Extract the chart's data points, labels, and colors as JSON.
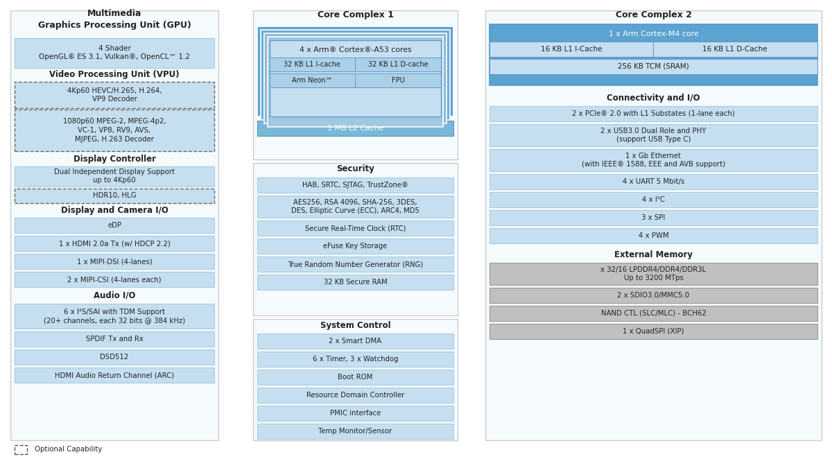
{
  "bg": "#ffffff",
  "lb": "#c5dff0",
  "mb": "#7ab8d8",
  "db": "#5ba3d0",
  "gray1": "#c0c0c0",
  "gray2": "#a8a8a8",
  "panel_bg": "#f5fafd",
  "col1_title": "Multimedia\nGraphics Processing Unit (GPU)",
  "col2_title": "Core Complex 1",
  "col3_title": "Core Complex 2",
  "gpu_text": "4 Shader\nOpenGL® ES 3.1, Vulkan®, OpenCL™ 1.2",
  "vpu_title": "Video Processing Unit (VPU)",
  "vpu1": "4Kp60 HEVC/H.265, H.264,\nVP9 Decoder",
  "vpu2": "1080p60 MPEG-2, MPEG-4p2,\nVC-1, VP8, RV9, AVS,\nMJPEG, H.263 Decoder",
  "dc_title": "Display Controller",
  "dc1": "Dual Independent Display Support\nup to 4Kp60",
  "dc2": "HDR10, HLG",
  "dcio_title": "Display and Camera I/O",
  "dcio": [
    "eDP",
    "1 x HDMI 2.0a Tx (w/ HDCP 2.2)",
    "1 x MIPI-DSI (4-lanes)",
    "2 x MIPI-CSI (4-lanes each)"
  ],
  "audio_title": "Audio I/O",
  "audio1": "6 x I²S/SAI with TDM Support\n(20+ channels, each 32 bits @ 384 kHz)",
  "audio_rest": [
    "SPDIF Tx and Rx",
    "DSD512",
    "HDMI Audio Return Channel (ARC)"
  ],
  "cc1_cores": "4 x Arm® Cortex®-A53 cores",
  "cc1_icache": "32 KB L1 I-cache",
  "cc1_dcache": "32 KB L1 D-cache",
  "cc1_neon": "Arm Neon™",
  "cc1_fpu": "FPU",
  "cc1_l2": "1 MB L2 Cache",
  "sec_title": "Security",
  "sec": [
    "HAB, SRTC, SJTAG, TrustZone®",
    "AES256, RSA 4096, SHA-256, 3DES,\nDES, Elliptic Curve (ECC), ARC4, MD5",
    "Secure Real-Time Clock (RTC)",
    "eFuse Key Storage",
    "True Random Number Generator (RNG)",
    "32 KB Secure RAM"
  ],
  "sc_title": "System Control",
  "sc": [
    "2 x Smart DMA",
    "6 x Timer, 3 x Watchdog",
    "Boot ROM",
    "Resource Domain Controller",
    "PMIC interface",
    "Temp Monitor/Sensor"
  ],
  "cc2_core": "1 x Arm Cortex-M4 core",
  "cc2_icache": "16 KB L1 I-Cache",
  "cc2_dcache": "16 KB L1 D-Cache",
  "cc2_tcm": "256 KB TCM (SRAM)",
  "conn_title": "Connectivity and I/O",
  "conn": [
    "2 x PCIe® 2.0 with L1 Substates (1-lane each)",
    "2 x USB3.0 Dual Role and PHY\n(support USB Type C)",
    "1 x Gb Ethernet\n(with IEEE® 1588, EEE and AVB support)",
    "4 x UART 5 Mbit/s",
    "4 x I²C",
    "3 x SPI",
    "4 x PWM"
  ],
  "em_title": "External Memory",
  "em": [
    "x 32/16 LPDDR4/DDR4/DDR3L\nUp to 3200 MTps",
    "2 x SDIO3.0/MMC5.0",
    "NAND CTL (SLC/MLC) - BCH62",
    "1 x QuadSPI (XIP)"
  ],
  "optional": "Optional Capability"
}
